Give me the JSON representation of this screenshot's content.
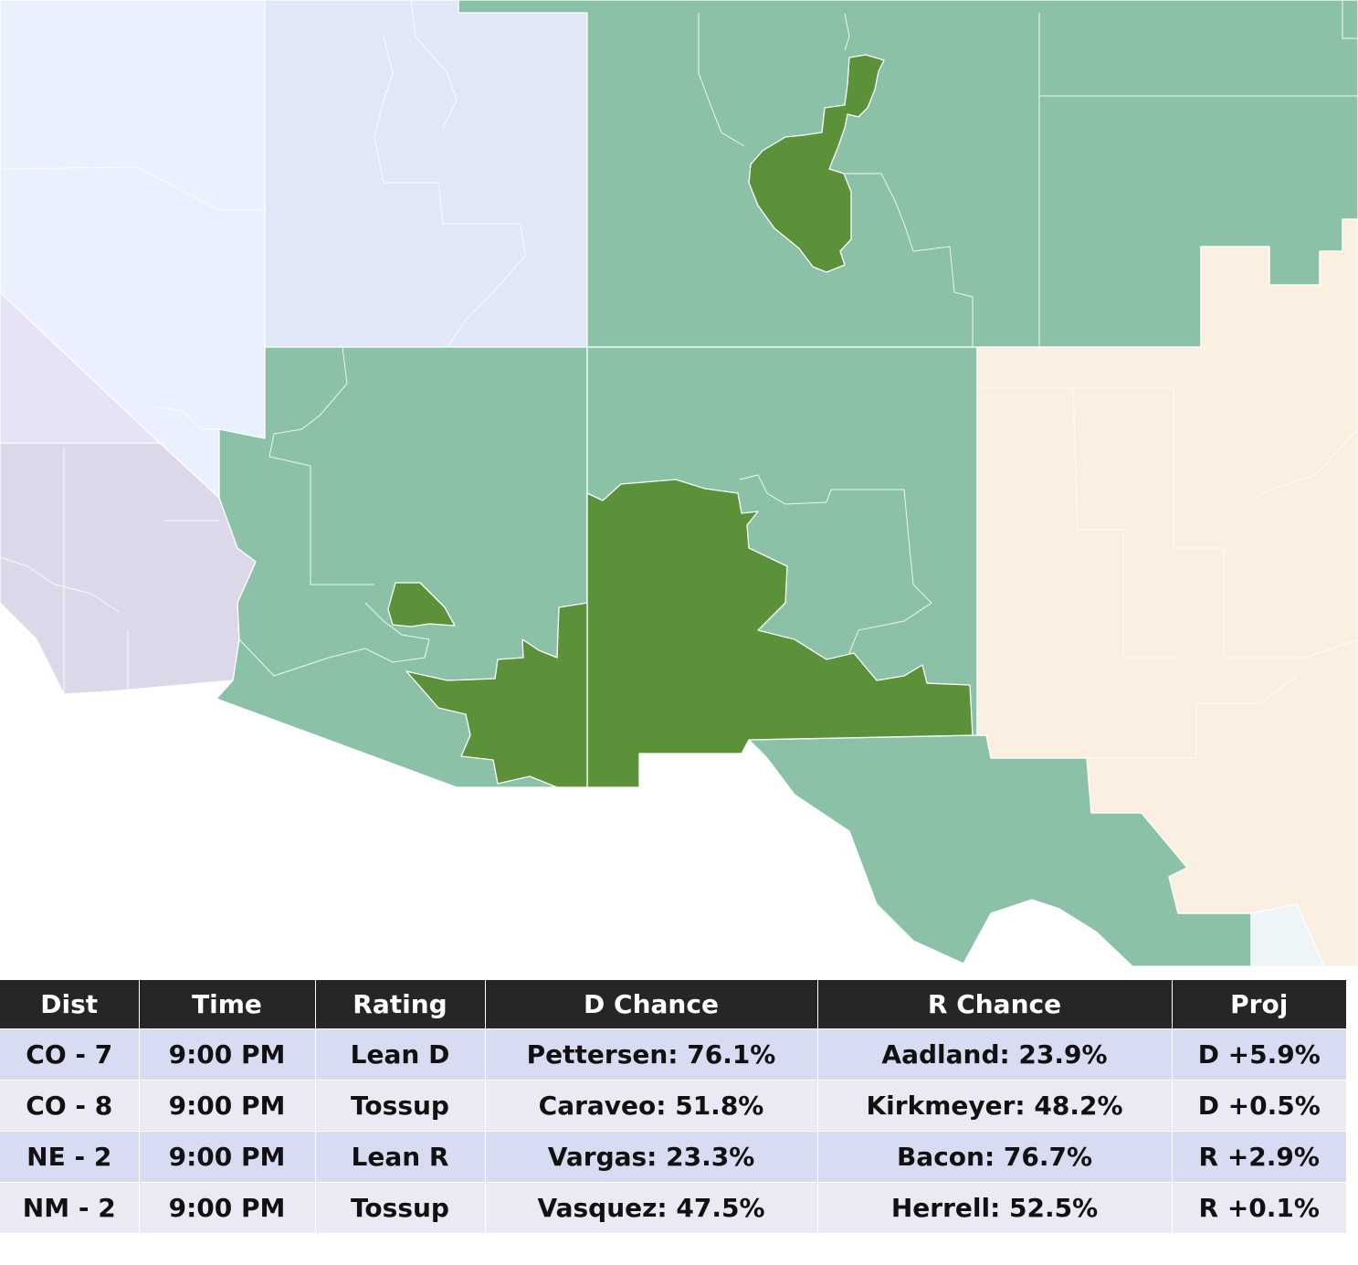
{
  "colors": {
    "safe_d_light": "#e0e8f7",
    "pale_blue": "#eaf0fd",
    "lavender": "#e7e3f6",
    "lavender_gray": "#dcd8ea",
    "lean_green": "#8bc1a7",
    "highlight_green": "#5b9138",
    "peach": "#fbefe2",
    "ice": "#eef5f8",
    "header_bg": "#262626",
    "row_odd": "#d7dcf2",
    "row_even": "#e9eaf3"
  },
  "table": {
    "headers": {
      "dist": "Dist",
      "time": "Time",
      "rating": "Rating",
      "d_chance": "D Chance",
      "r_chance": "R Chance",
      "proj": "Proj"
    },
    "rows": [
      {
        "dist": "CO - 7",
        "time": "9:00 PM",
        "rating": "Lean D",
        "d_chance": "Pettersen: 76.1%",
        "r_chance": "Aadland: 23.9%",
        "proj": "D +5.9%"
      },
      {
        "dist": "CO - 8",
        "time": "9:00 PM",
        "rating": "Tossup",
        "d_chance": "Caraveo: 51.8%",
        "r_chance": "Kirkmeyer: 48.2%",
        "proj": "D +0.5%"
      },
      {
        "dist": "NE - 2",
        "time": "9:00 PM",
        "rating": "Lean R",
        "d_chance": "Vargas: 23.3%",
        "r_chance": "Bacon: 76.7%",
        "proj": "R +2.9%"
      },
      {
        "dist": "NM - 2",
        "time": "9:00 PM",
        "rating": "Tossup",
        "d_chance": "Vasquez: 47.5%",
        "r_chance": "Herrell: 52.5%",
        "proj": "R +0.1%"
      }
    ]
  }
}
